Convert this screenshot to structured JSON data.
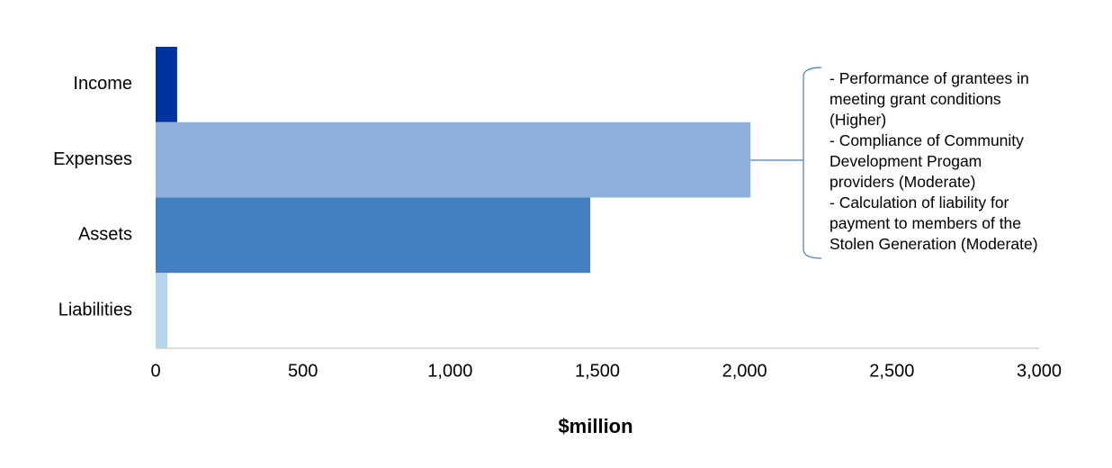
{
  "chart_data": {
    "type": "bar",
    "orientation": "horizontal",
    "categories": [
      "Income",
      "Expenses",
      "Assets",
      "Liabilities"
    ],
    "values": [
      73,
      2020,
      1476,
      40
    ],
    "colors": [
      "#0033a0",
      "#8fb0d8",
      "#447fc1",
      "#b5d5ea"
    ],
    "xlim": [
      0,
      3000
    ],
    "xticks": [
      0,
      500,
      {
        "value": 1000,
        "label": "1,000"
      },
      {
        "value": 1500,
        "label": "1,500"
      },
      {
        "value": 2000,
        "label": "2,000"
      },
      {
        "value": 2500,
        "label": "2,500"
      },
      {
        "value": 3000,
        "label": "3,000"
      }
    ],
    "xlabel": "$million",
    "annotation": [
      "- Performance of grantees in",
      "meeting grant conditions",
      "(Higher)",
      "- Compliance of Community",
      "Development Progam",
      "providers (Moderate)",
      "- Calculation of liability for",
      "payment to members of the",
      "Stolen Generation (Moderate)"
    ],
    "grid": false
  }
}
